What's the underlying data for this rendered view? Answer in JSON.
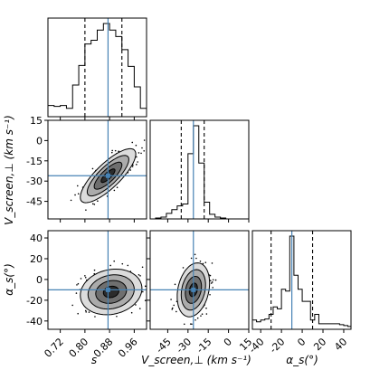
{
  "chart_data": {
    "type": "corner",
    "parameters": [
      {
        "id": "s",
        "label": "s",
        "range": [
          0.68,
          1.0
        ],
        "ticks": [
          0.72,
          0.8,
          0.88,
          0.96
        ],
        "tick_labels": [
          "0.72",
          "0.80",
          "0.88",
          "0.96"
        ],
        "truth": 0.875,
        "quantiles": [
          0.8,
          0.92
        ]
      },
      {
        "id": "v",
        "label": "V_screen,⊥ (km s⁻¹)",
        "range": [
          -58,
          15
        ],
        "ticks": [
          -45,
          -30,
          -15,
          0,
          15
        ],
        "tick_labels": [
          "-45",
          "-30",
          "-15",
          "0",
          "15"
        ],
        "truth": -26,
        "quantiles": [
          -35,
          -18
        ]
      },
      {
        "id": "a",
        "label": "α_s(°)",
        "range": [
          -48,
          47
        ],
        "ticks": [
          -40,
          -20,
          0,
          20,
          40
        ],
        "tick_labels": [
          "-40",
          "-20",
          "0",
          "20",
          "40"
        ],
        "truth": -10,
        "quantiles": [
          -30,
          10
        ]
      }
    ],
    "histograms": [
      {
        "param": "s",
        "bins": [
          0.68,
          0.7,
          0.72,
          0.74,
          0.76,
          0.78,
          0.8,
          0.82,
          0.84,
          0.86,
          0.88,
          0.9,
          0.92,
          0.94,
          0.96,
          0.98,
          1.0
        ],
        "counts": [
          0.12,
          0.11,
          0.12,
          0.09,
          0.34,
          0.55,
          0.78,
          0.82,
          0.93,
          1.0,
          0.93,
          0.86,
          0.72,
          0.54,
          0.32,
          0.09
        ]
      },
      {
        "param": "v",
        "bins": [
          -58,
          -54,
          -50,
          -46,
          -42,
          -38,
          -34,
          -30,
          -26,
          -22,
          -18,
          -14,
          -10,
          -6,
          -2,
          2,
          6,
          10,
          14
        ],
        "counts": [
          0.0,
          0.01,
          0.02,
          0.06,
          0.1,
          0.14,
          0.16,
          0.7,
          1.0,
          0.6,
          0.18,
          0.05,
          0.02,
          0.01,
          0.0,
          0.0,
          0.0,
          0.0
        ]
      },
      {
        "param": "a",
        "bins": [
          -48,
          -44,
          -40,
          -36,
          -32,
          -28,
          -24,
          -20,
          -16,
          -12,
          -8,
          -4,
          0,
          4,
          8,
          12,
          16,
          20,
          24,
          28,
          32,
          36,
          40,
          44,
          47
        ],
        "counts": [
          0.1,
          0.08,
          0.1,
          0.11,
          0.16,
          0.24,
          0.22,
          0.43,
          0.41,
          1.0,
          0.58,
          0.43,
          0.3,
          0.3,
          0.1,
          0.16,
          0.06,
          0.06,
          0.06,
          0.06,
          0.06,
          0.05,
          0.04,
          0.03
        ]
      }
    ],
    "pairs": [
      {
        "x": "s",
        "y": "v",
        "center": [
          0.875,
          -26
        ],
        "sigma": [
          0.045,
          10
        ],
        "correlation": 0.8
      },
      {
        "x": "s",
        "y": "a",
        "center": [
          0.885,
          -12
        ],
        "sigma": [
          0.05,
          11
        ],
        "correlation": 0.15
      },
      {
        "x": "v",
        "y": "a",
        "center": [
          -26,
          -10
        ],
        "sigma": [
          6,
          13
        ],
        "correlation": 0.25
      }
    ],
    "contour_levels_sigma": [
      0.5,
      1.0,
      1.5,
      2.0
    ],
    "truth_color": "#4682b4",
    "grid": false,
    "legend": "none"
  }
}
